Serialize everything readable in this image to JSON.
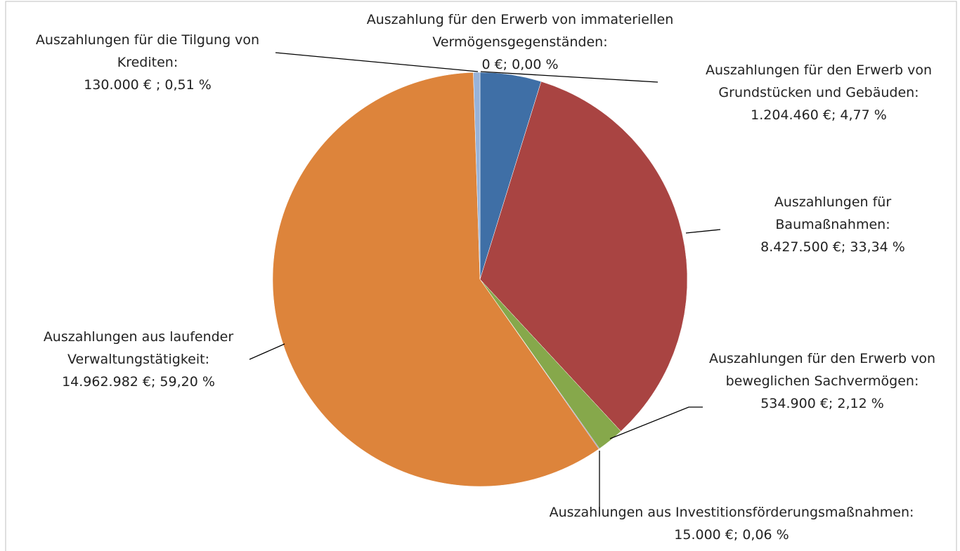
{
  "chart_data": {
    "type": "pie",
    "categories": [
      "Auszahlung für den Erwerb von immateriellen Vermögensgegenständen:",
      "Auszahlungen für den Erwerb von Grundstücken und Gebäuden:",
      "Auszahlungen für Baumaßnahmen:",
      "Auszahlungen für den Erwerb von beweglichen Sachvermögen:",
      "Auszahlungen aus Investitionsförderungsmaßnahmen:",
      "Auszahlungen aus laufender Verwaltungstätigkeit:",
      "Auszahlungen für die Tilgung von Krediten:"
    ],
    "values": [
      0,
      1204460,
      8427500,
      534900,
      15000,
      14962982,
      130000
    ],
    "value_labels": [
      "0 €; 0,00 %",
      "1.204.460 €; 4,77 %",
      "8.427.500 €; 33,34 %",
      "534.900 €; 2,12 %",
      "15.000 €; 0,06 %",
      "14.962.982 €; 59,20 %",
      "130.000 € ; 0,51 %"
    ],
    "colors": [
      "#4a7ebb",
      "#3f6fa6",
      "#a94442",
      "#86a84b",
      "#7d5fa0",
      "#dd843b",
      "#98b3d9"
    ]
  }
}
